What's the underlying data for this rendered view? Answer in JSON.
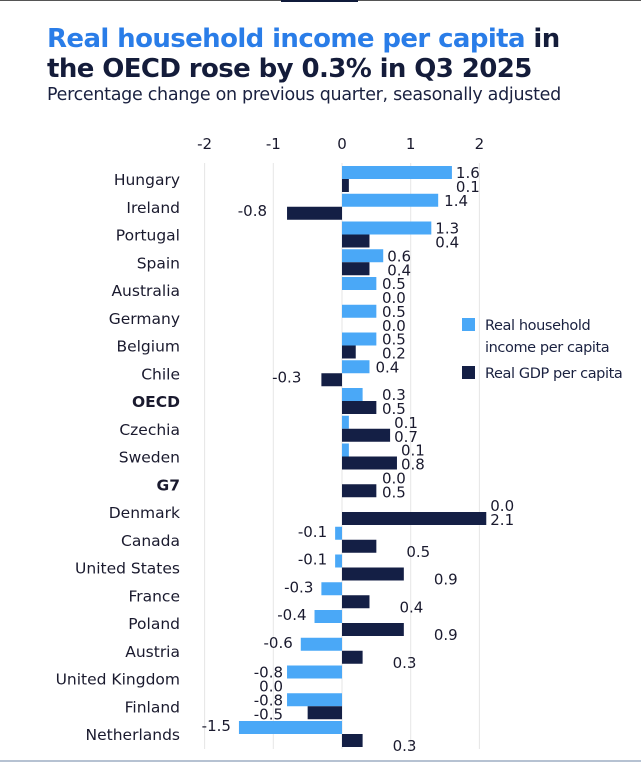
{
  "header": {
    "title_highlight": "Real household income per capita",
    "title_rest_line1": " in",
    "title_line2": "the OECD rose by 0.3% in Q3 2025",
    "subtitle": "Percentage change on previous quarter, seasonally adjusted"
  },
  "colors": {
    "income": "#4aa8f7",
    "gdp": "#141f45",
    "title_highlight": "#2a7de8",
    "grid": "#e6e6e6"
  },
  "legend": {
    "income_label": "Real household income per capita",
    "gdp_label": "Real GDP per capita"
  },
  "chart_data": {
    "type": "bar",
    "orientation": "horizontal",
    "title": "Real household income per capita in the OECD rose by 0.3% in Q3 2025",
    "subtitle": "Percentage change on previous quarter, seasonally adjusted",
    "xlabel": "",
    "ylabel": "",
    "xlim": [
      -2,
      2.2
    ],
    "xticks": [
      -2,
      -1,
      0,
      1,
      2
    ],
    "grid": true,
    "legend_position": "right",
    "categories": [
      "Hungary",
      "Ireland",
      "Portugal",
      "Spain",
      "Australia",
      "Germany",
      "Belgium",
      "Chile",
      "OECD",
      "Czechia",
      "Sweden",
      "G7",
      "Denmark",
      "Canada",
      "United States",
      "France",
      "Poland",
      "Austria",
      "United Kingdom",
      "Finland",
      "Netherlands"
    ],
    "bold_categories": [
      "OECD",
      "G7"
    ],
    "series": [
      {
        "name": "Real household income per capita",
        "values": [
          1.6,
          1.4,
          1.3,
          0.6,
          0.5,
          0.5,
          0.5,
          0.4,
          0.3,
          0.1,
          0.1,
          0.0,
          0.0,
          -0.1,
          -0.1,
          -0.3,
          -0.4,
          -0.6,
          -0.8,
          -0.8,
          -1.5
        ],
        "labels": [
          "1.6",
          "1.4",
          "1.3",
          "0.6",
          "0.5",
          "0.5",
          "0.5",
          "0.4",
          "0.3",
          "0.1",
          "0.1",
          "0.0",
          "0.0",
          "-0.1",
          "-0.1",
          "-0.3",
          "-0.4",
          "-0.6",
          "-0.8",
          "-0.8",
          "-1.5"
        ]
      },
      {
        "name": "Real GDP per capita",
        "values": [
          0.1,
          -0.8,
          0.4,
          0.4,
          0.0,
          0.0,
          0.2,
          -0.3,
          0.5,
          0.7,
          0.8,
          0.5,
          2.1,
          0.5,
          0.9,
          0.4,
          0.9,
          0.3,
          0.0,
          -0.5,
          0.3
        ],
        "labels": [
          "0.1",
          "-0.8",
          "0.4",
          "0.4",
          "0.0",
          "0.0",
          "0.2",
          "-0.3",
          "0.5",
          "0.7",
          "0.8",
          "0.5",
          "2.1",
          "0.5",
          "0.9",
          "0.4",
          "0.9",
          "0.3",
          "0.0",
          "-0.5",
          "0.3"
        ]
      }
    ]
  }
}
